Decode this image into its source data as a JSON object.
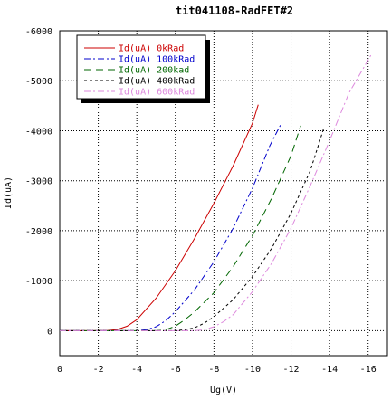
{
  "chart_data": {
    "type": "line",
    "title": "tit041108-RadFET#2",
    "xlabel": "Ug(V)",
    "ylabel": "Id(uA)",
    "xlim": [
      0,
      -17
    ],
    "ylim": [
      500,
      -6000
    ],
    "x_ticks": [
      "0",
      "-2",
      "-4",
      "-6",
      "-8",
      "-10",
      "-12",
      "-14",
      "-16"
    ],
    "y_ticks": [
      "-6000",
      "-5000",
      "-4000",
      "-3000",
      "-2000",
      "-1000",
      "0"
    ],
    "grid": true,
    "legend_position": "top-left",
    "series": [
      {
        "name": "Id(uA) 0kRad",
        "color": "#cc0000",
        "dash": "solid",
        "points": [
          [
            0,
            0
          ],
          [
            -1,
            0
          ],
          [
            -2,
            0
          ],
          [
            -2.5,
            -5
          ],
          [
            -3,
            -25
          ],
          [
            -3.5,
            -90
          ],
          [
            -4,
            -220
          ],
          [
            -5,
            -650
          ],
          [
            -6,
            -1200
          ],
          [
            -7,
            -1850
          ],
          [
            -8,
            -2550
          ],
          [
            -9,
            -3300
          ],
          [
            -10,
            -4150
          ],
          [
            -10.3,
            -4520
          ]
        ]
      },
      {
        "name": "Id(uA) 100kRad",
        "color": "#0000cc",
        "dash": "dashdot",
        "points": [
          [
            0,
            0
          ],
          [
            -2,
            0
          ],
          [
            -4,
            0
          ],
          [
            -4.5,
            -20
          ],
          [
            -5,
            -80
          ],
          [
            -5.5,
            -200
          ],
          [
            -6,
            -380
          ],
          [
            -7,
            -820
          ],
          [
            -8,
            -1380
          ],
          [
            -9,
            -2050
          ],
          [
            -10,
            -2850
          ],
          [
            -10.9,
            -3700
          ],
          [
            -11.5,
            -4150
          ]
        ]
      },
      {
        "name": "Id(uA) 200kad",
        "color": "#006600",
        "dash": "longdash",
        "points": [
          [
            0,
            0
          ],
          [
            -3,
            0
          ],
          [
            -5,
            0
          ],
          [
            -5.5,
            -20
          ],
          [
            -6,
            -90
          ],
          [
            -6.5,
            -220
          ],
          [
            -7,
            -380
          ],
          [
            -8,
            -760
          ],
          [
            -9,
            -1280
          ],
          [
            -10,
            -1900
          ],
          [
            -11,
            -2650
          ],
          [
            -12,
            -3500
          ],
          [
            -12.5,
            -4100
          ]
        ]
      },
      {
        "name": "Id(uA) 400kRad",
        "color": "#000000",
        "dash": "shortdash",
        "points": [
          [
            0,
            0
          ],
          [
            -4,
            0
          ],
          [
            -6,
            0
          ],
          [
            -6.5,
            -20
          ],
          [
            -7,
            -60
          ],
          [
            -7.5,
            -150
          ],
          [
            -8,
            -280
          ],
          [
            -9,
            -620
          ],
          [
            -10,
            -1080
          ],
          [
            -11,
            -1650
          ],
          [
            -12,
            -2350
          ],
          [
            -13,
            -3200
          ],
          [
            -13.7,
            -4050
          ]
        ]
      },
      {
        "name": "Id(uA) 600kRad",
        "color": "#dd88dd",
        "dash": "dashdot",
        "points": [
          [
            0,
            0
          ],
          [
            -4,
            0
          ],
          [
            -7,
            0
          ],
          [
            -7.5,
            -20
          ],
          [
            -8,
            -80
          ],
          [
            -8.5,
            -180
          ],
          [
            -9,
            -320
          ],
          [
            -10,
            -780
          ],
          [
            -11,
            -1350
          ],
          [
            -12,
            -2050
          ],
          [
            -13,
            -2900
          ],
          [
            -14,
            -3800
          ],
          [
            -15,
            -4750
          ],
          [
            -16.2,
            -5550
          ]
        ]
      }
    ]
  }
}
